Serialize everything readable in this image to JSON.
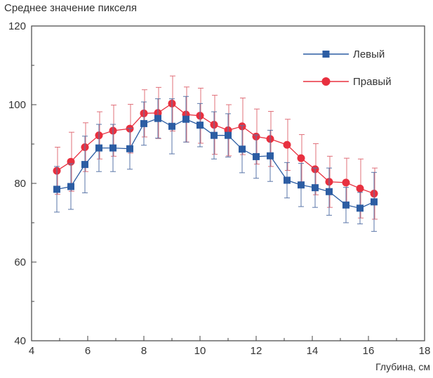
{
  "chart_data": {
    "type": "line",
    "title": "",
    "ylabel": "Среднее значение пикселя",
    "xlabel": "Глубина, см",
    "xlim": [
      4,
      18
    ],
    "ylim": [
      40,
      120
    ],
    "xticks": [
      "4",
      "6",
      "8",
      "10",
      "12",
      "14",
      "16",
      "18"
    ],
    "yticks": [
      "40",
      "60",
      "80",
      "100",
      "120"
    ],
    "x": [
      4.9,
      5.4,
      5.9,
      6.4,
      6.9,
      7.5,
      8.0,
      8.5,
      9.0,
      9.5,
      10.0,
      10.5,
      11.0,
      11.5,
      12.0,
      12.5,
      13.1,
      13.6,
      14.1,
      14.6,
      15.2,
      15.7,
      16.2
    ],
    "series": [
      {
        "name": "Левый",
        "color": "#2c5da3",
        "marker": "square",
        "values": [
          78.5,
          79.2,
          84.8,
          89.0,
          89.0,
          88.8,
          95.2,
          96.5,
          94.5,
          96.3,
          94.8,
          92.2,
          92.2,
          88.7,
          86.8,
          87.0,
          80.8,
          79.6,
          78.9,
          77.9,
          74.5,
          73.7,
          75.3
        ],
        "errors": [
          5.8,
          5.8,
          7.2,
          6.0,
          6.0,
          5.2,
          5.5,
          5.0,
          7.0,
          5.8,
          5.5,
          6.0,
          5.5,
          6.0,
          5.5,
          6.5,
          4.5,
          5.5,
          5.0,
          6.0,
          4.5,
          4.0,
          7.5
        ]
      },
      {
        "name": "Правый",
        "color": "#e8303f",
        "marker": "circle",
        "values": [
          83.2,
          85.5,
          89.2,
          92.2,
          93.4,
          93.9,
          97.8,
          97.9,
          100.3,
          97.5,
          97.2,
          94.9,
          93.5,
          94.5,
          91.9,
          91.3,
          89.8,
          86.4,
          83.6,
          80.4,
          80.2,
          78.7,
          77.4
        ],
        "errors": [
          6.0,
          7.5,
          6.2,
          6.0,
          6.5,
          6.2,
          6.0,
          6.5,
          7.0,
          7.0,
          7.0,
          7.5,
          6.5,
          7.2,
          7.0,
          7.0,
          6.5,
          6.0,
          6.5,
          6.5,
          6.2,
          7.5,
          6.5
        ]
      }
    ],
    "legend_position": "top-right",
    "grid": false
  }
}
